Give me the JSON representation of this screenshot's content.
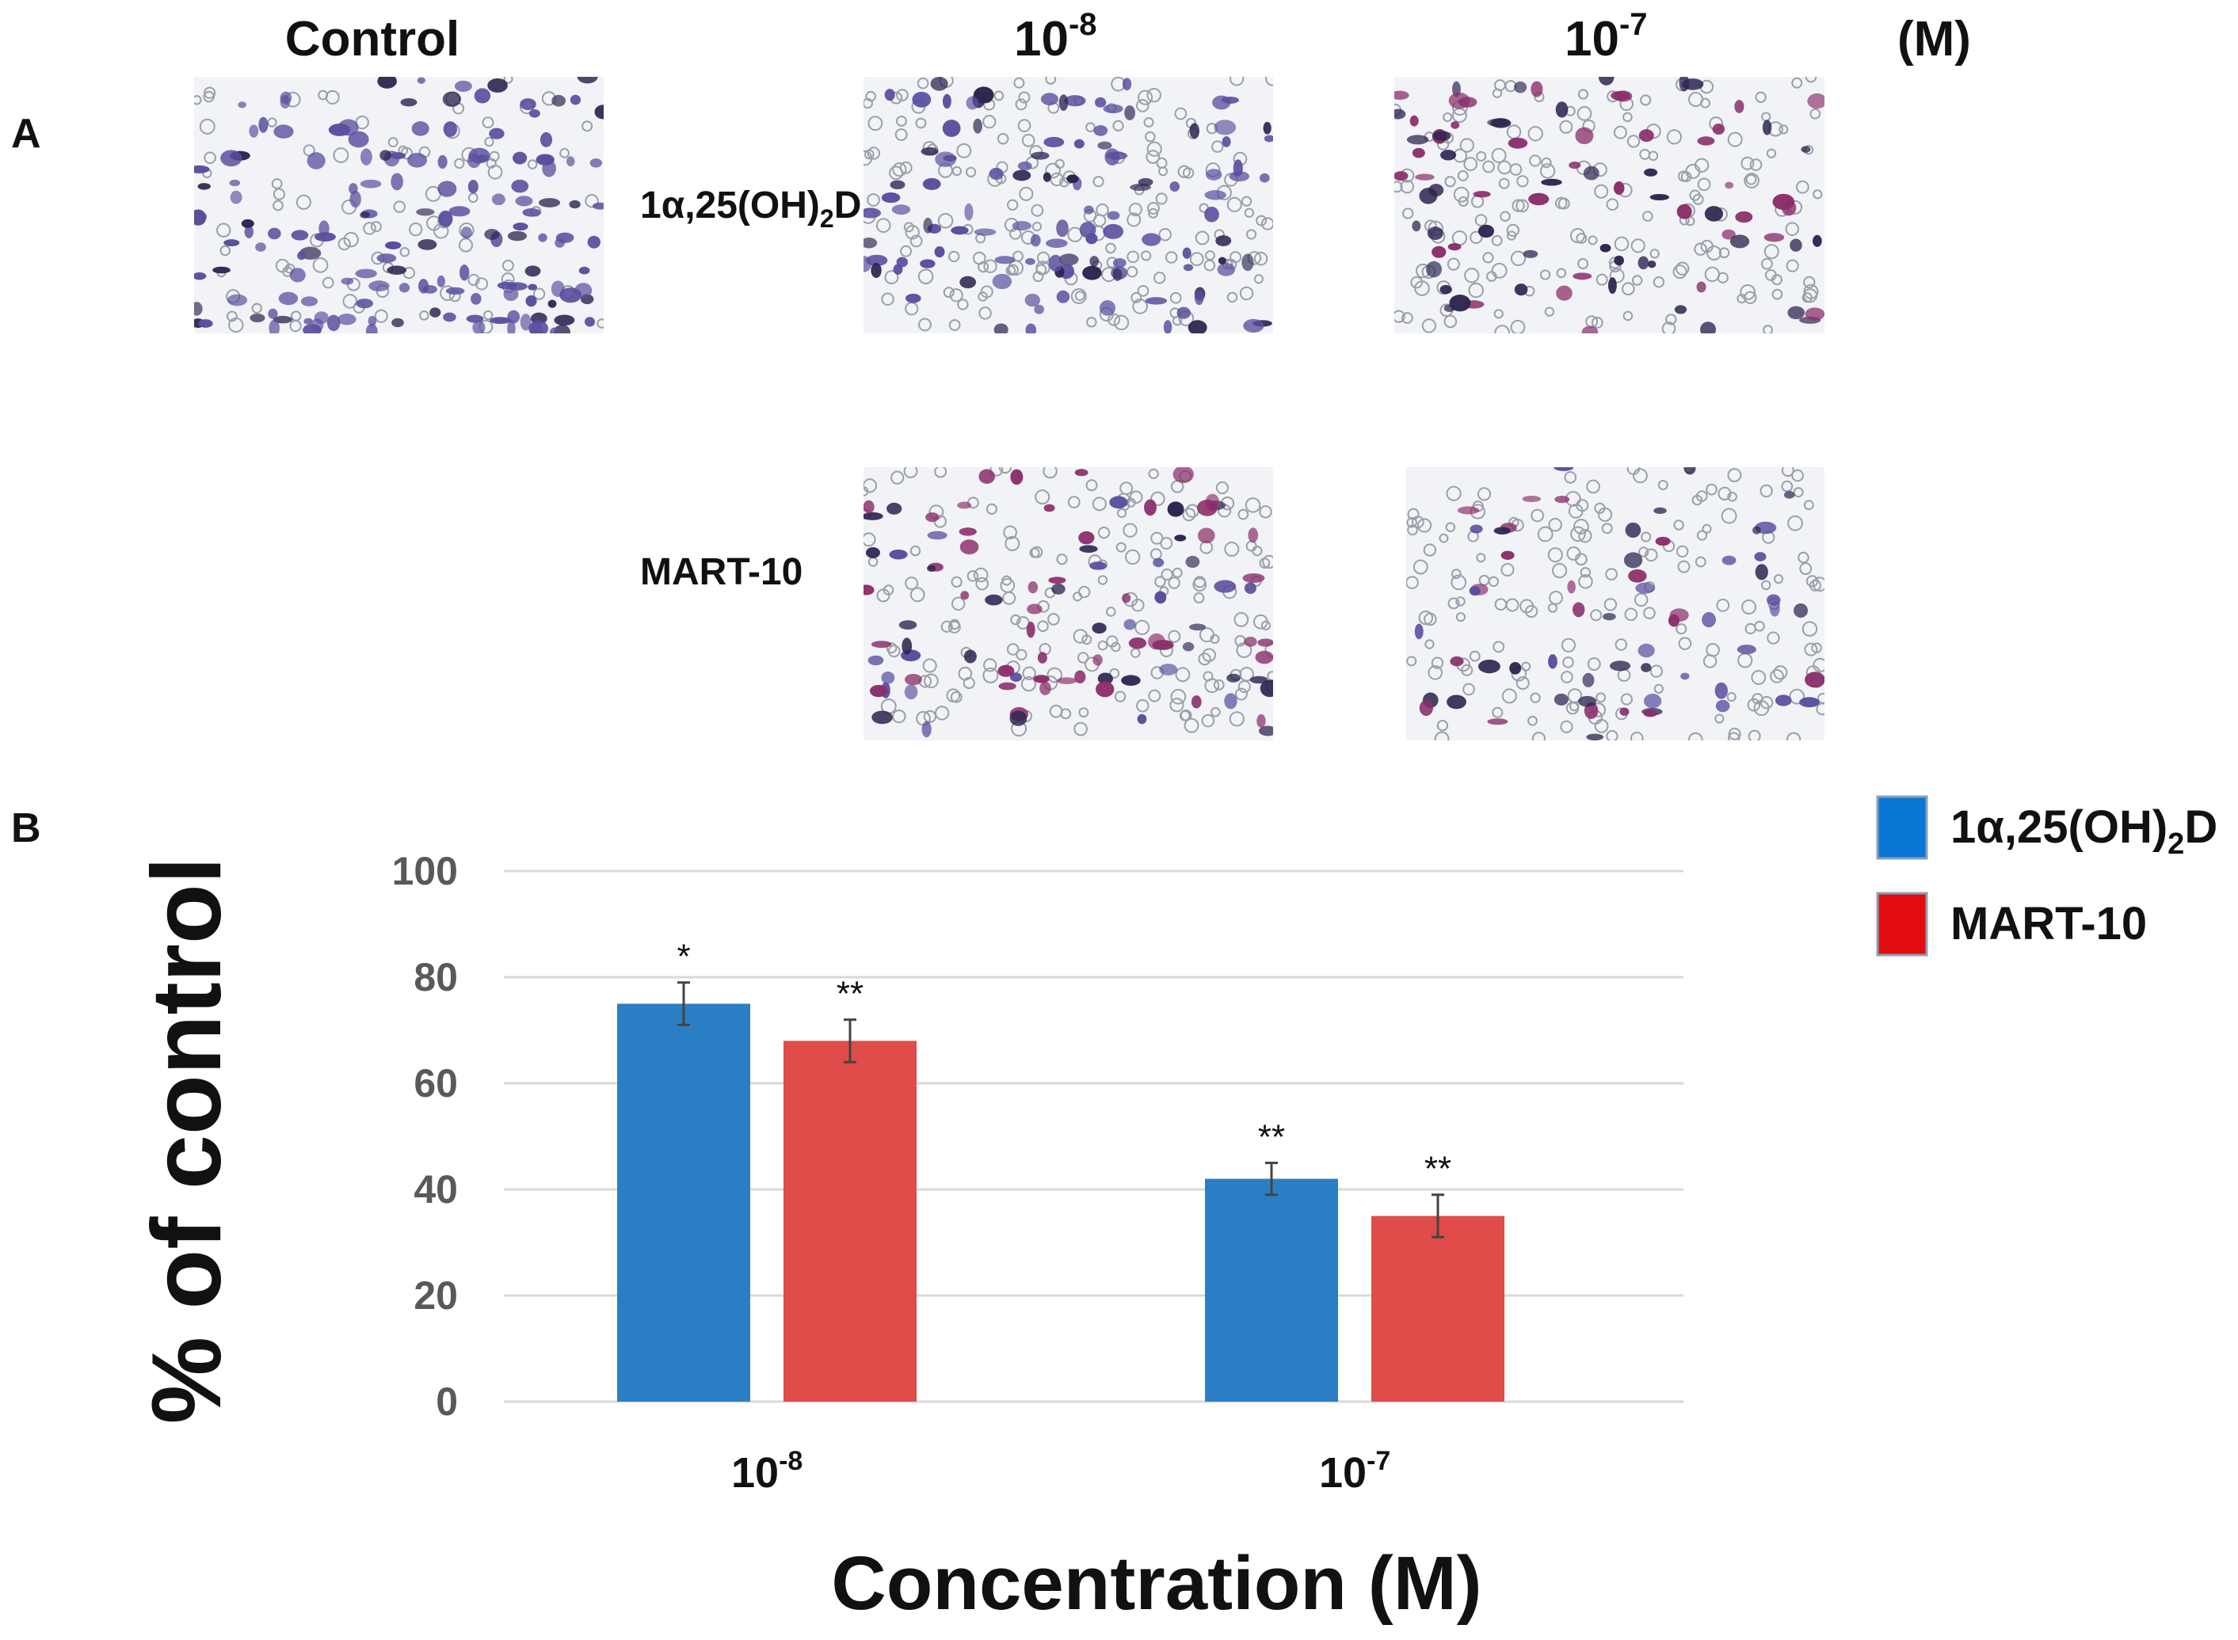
{
  "panel_a": {
    "panel_letter": "A",
    "column_headers": {
      "control": "Control",
      "dose1": {
        "base": "10",
        "exp": "-8"
      },
      "dose2": {
        "base": "10",
        "exp": "-7"
      },
      "unit": "(M)"
    },
    "row_labels": {
      "calcitriol": {
        "prefix": "1α,25(OH)",
        "sub": "2",
        "suffix": "D"
      },
      "mart": "MART-10"
    },
    "image_palette": {
      "background": "#f1f3f7",
      "blue_violet": "#5a4e9e",
      "dark_violet": "#2e2550",
      "magenta": "#8a2e6a",
      "pale_cell": "#9aa0a8"
    }
  },
  "chart_data": {
    "type": "bar",
    "panel_letter": "B",
    "title": "",
    "ylabel": "% of control",
    "xlabel": "Concentration (M)",
    "ylim": [
      0,
      100
    ],
    "yticks": [
      "0",
      "20",
      "40",
      "60",
      "80",
      "100"
    ],
    "categories": [
      {
        "base": "10",
        "exp": "-8"
      },
      {
        "base": "10",
        "exp": "-7"
      }
    ],
    "series": [
      {
        "name": "1α,25(OH)2D",
        "legend": {
          "prefix": "1α,25(OH)",
          "sub": "2",
          "suffix": "D"
        },
        "values": [
          75,
          42
        ],
        "errors": [
          4,
          3
        ],
        "significance": [
          "*",
          "**"
        ],
        "color": "#2a7fc4",
        "legend_color": "#0b77d4"
      },
      {
        "name": "MART-10",
        "legend": {
          "prefix": "MART-10",
          "sub": "",
          "suffix": ""
        },
        "values": [
          68,
          35
        ],
        "errors": [
          4,
          4
        ],
        "significance": [
          "**",
          "**"
        ],
        "color": "#df4c4a",
        "legend_color": "#e20c10"
      }
    ],
    "grid": true,
    "legend_position": "top-right"
  }
}
